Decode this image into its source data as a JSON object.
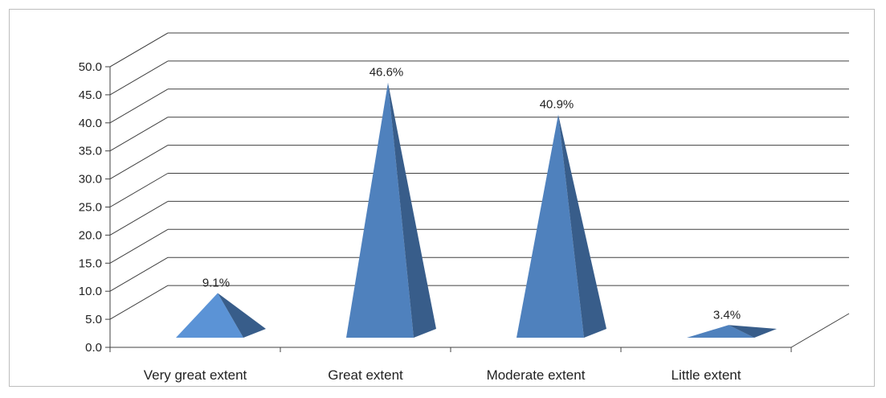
{
  "chart_data": {
    "type": "bar",
    "shape": "pyramid-3d",
    "categories": [
      "Very great extent",
      "Great extent",
      "Moderate extent",
      "Little extent"
    ],
    "values": [
      9.1,
      46.6,
      40.9,
      3.4
    ],
    "data_labels": [
      "9.1%",
      "46.6%",
      "40.9%",
      "3.4%"
    ],
    "ylim": [
      0,
      50
    ],
    "yticks": [
      "0.0",
      "5.0",
      "10.0",
      "15.0",
      "20.0",
      "25.0",
      "30.0",
      "35.0",
      "40.0",
      "45.0",
      "50.0"
    ],
    "grid": true,
    "legend": "none",
    "colors": {
      "front": "#4f81bd",
      "front_first": "#5b93d6",
      "side": "#385d8a",
      "gridline": "#404040",
      "axis": "#404040"
    }
  }
}
